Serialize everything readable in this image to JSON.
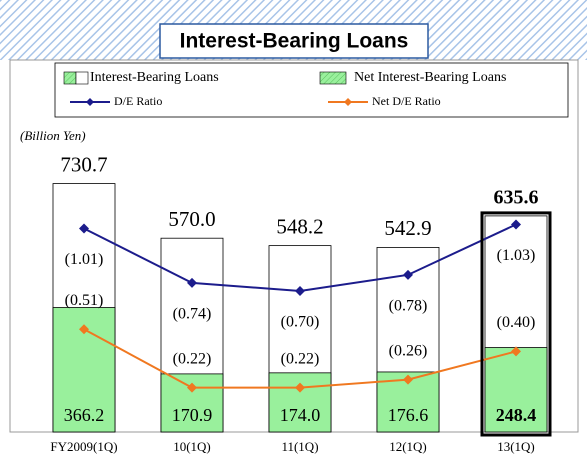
{
  "chart_data": {
    "type": "bar",
    "title": "Interest-Bearing Loans",
    "y_label": "(Billion Yen)",
    "categories": [
      "FY2009(1Q)",
      "10(1Q)",
      "11(1Q)",
      "12(1Q)",
      "13(1Q)"
    ],
    "ylim": [
      0,
      800
    ],
    "y2lim": [
      0,
      1.35
    ],
    "series": [
      {
        "name": "Interest-Bearing Loans",
        "type": "bar",
        "color": "#ffffff",
        "values": [
          730.7,
          570.0,
          548.2,
          542.9,
          635.6
        ],
        "value_labels": [
          "730.7",
          "570.0",
          "548.2",
          "542.9",
          "635.6"
        ]
      },
      {
        "name": "Net Interest-Bearing Loans",
        "type": "bar",
        "color": "#99f09c",
        "values": [
          366.2,
          170.9,
          174.0,
          176.6,
          248.4
        ],
        "value_labels": [
          "366.2",
          "170.9",
          "174.0",
          "176.6",
          "248.4"
        ]
      },
      {
        "name": "D/E Ratio",
        "type": "line",
        "axis": "y2",
        "color": "#1c1c8c",
        "values": [
          1.01,
          0.74,
          0.7,
          0.78,
          1.03
        ],
        "value_labels": [
          "(1.01)",
          "(0.74)",
          "(0.70)",
          "(0.78)",
          "(1.03)"
        ]
      },
      {
        "name": "Net D/E Ratio",
        "type": "line",
        "axis": "y2",
        "color": "#f07820",
        "values": [
          0.51,
          0.22,
          0.22,
          0.26,
          0.4
        ],
        "value_labels": [
          "(0.51)",
          "(0.22)",
          "(0.22)",
          "(0.26)",
          "(0.40)"
        ]
      }
    ]
  }
}
